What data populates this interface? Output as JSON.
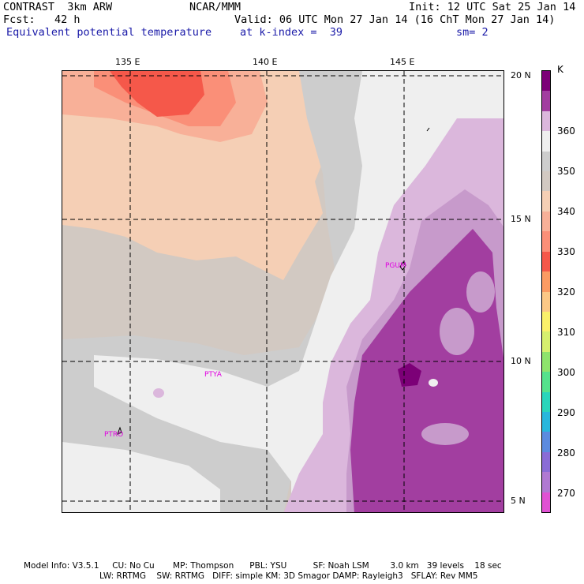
{
  "header": {
    "left_line1": "CONTRAST  3km ARW",
    "center_line1": "NCAR/MMM",
    "right_line1": "Init: 12 UTC Sat 25 Jan 14",
    "left_line2": "Fcst:   42 h",
    "right_line2": "Valid: 06 UTC Mon 27 Jan 14 (16 ChT Mon 27 Jan 14)",
    "field_name": "Equivalent potential temperature",
    "level": "at k-index =  39",
    "smoothing": "sm= 2"
  },
  "map": {
    "lon_labels": [
      "135 E",
      "140 E",
      "145 E"
    ],
    "lat_labels": [
      "20 N",
      "15 N",
      "10 N",
      "5 N"
    ],
    "stations": [
      {
        "name": "PGUM"
      },
      {
        "name": "PTYA"
      },
      {
        "name": "PTRO"
      }
    ],
    "colors": {
      "c330": "#f5584a",
      "c335": "#fa8f78",
      "c340": "#f8b098",
      "c345": "#f5cfb5",
      "c350": "#d2c9c2",
      "c355": "#cdcdcd",
      "c360": "#efefef",
      "c365": "#dbb7dc",
      "c370": "#c79acb",
      "c375": "#a23ea0",
      "c380": "#7c0077"
    }
  },
  "colorbar": {
    "unit": "K",
    "labels": [
      "360",
      "350",
      "340",
      "330",
      "320",
      "310",
      "300",
      "290",
      "280",
      "270"
    ],
    "colors": [
      "#7c0077",
      "#a23ea0",
      "#dbb7dc",
      "#efefef",
      "#cdcdcd",
      "#d2c9c2",
      "#f5cfb5",
      "#f8b098",
      "#fa8f78",
      "#f5584a",
      "#fb9b63",
      "#fcc886",
      "#faf06a",
      "#d6ef6e",
      "#8ee36c",
      "#55e28c",
      "#2ad5bb",
      "#29b7dc",
      "#5c8bdf",
      "#8a6cd6",
      "#b079d2",
      "#e052d3"
    ]
  },
  "footer": {
    "line1": "Model Info: V3.5.1     CU: No Cu       MP: Thompson      PBL: YSU          SF: Noah LSM        3.0 km   39 levels    18 sec",
    "line2": "LW: RRTMG    SW: RRTMG   DIFF: simple KM: 3D Smagor DAMP: Rayleigh3   SFLAY: Rev MM5"
  }
}
